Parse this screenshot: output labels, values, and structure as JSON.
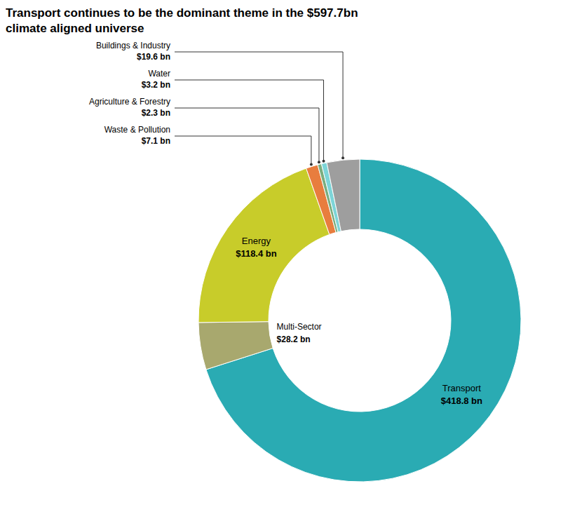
{
  "chart_data": {
    "type": "donut",
    "title": "Transport continues to be the dominant theme in the $597.7bn",
    "subtitle": "climate aligned universe",
    "categories": [
      "Transport",
      "Multi-Sector",
      "Energy",
      "Waste & Pollution",
      "Agriculture & Forestry",
      "Water",
      "Buildings & Industry"
    ],
    "values": [
      418.8,
      28.2,
      118.4,
      7.1,
      2.3,
      3.2,
      19.6
    ],
    "value_labels": [
      "$418.8 bn",
      "$28.2 bn",
      "$118.4 bn",
      "$7.1 bn",
      "$2.3 bn",
      "$3.2 bn",
      "$19.6 bn"
    ],
    "colors": [
      "#2AABB3",
      "#A8A86E",
      "#C8CC2A",
      "#E87D3E",
      "#7BAE7F",
      "#7DD5D8",
      "#9E9E9E"
    ],
    "data_labels": true
  }
}
